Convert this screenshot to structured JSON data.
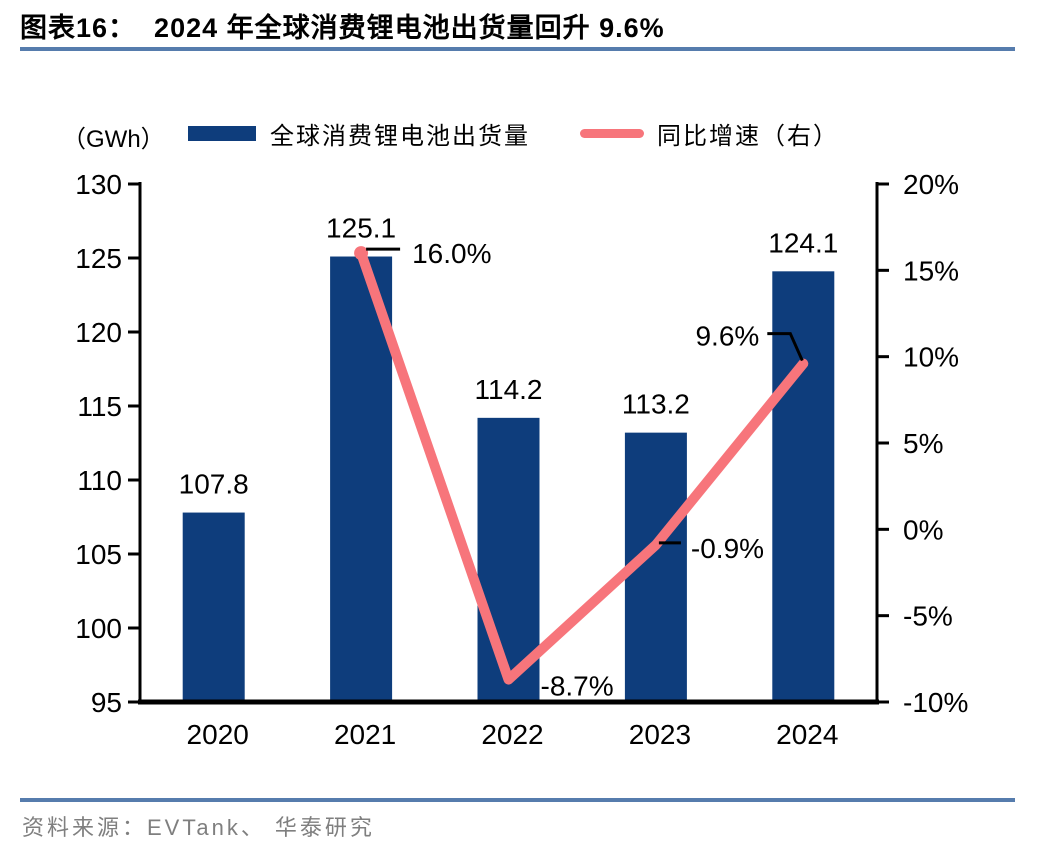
{
  "figure": {
    "label": "图表16：",
    "title": "2024 年全球消费锂电池出货量回升 9.6%",
    "unit_label": "（GWh）",
    "source": "资料来源：EVTank、 华泰研究"
  },
  "legend": {
    "bar_label": "全球消费锂电池出货量",
    "line_label": "同比增速（右）"
  },
  "colors": {
    "bar": "#0E3D7C",
    "line": "#F7757B",
    "axis": "#000000",
    "label_text": "#000000",
    "title_rule": "#567CAD",
    "source_rule": "#567CAD",
    "source_text": "#7F7F7F"
  },
  "chart_data": {
    "type": "bar",
    "subtype": "combo-bar-line-dual-axis",
    "title": "2024 年全球消费锂电池出货量回升 9.6%",
    "categories": [
      "2020",
      "2021",
      "2022",
      "2023",
      "2024"
    ],
    "series": [
      {
        "name": "全球消费锂电池出货量",
        "type": "bar",
        "axis": "left",
        "unit": "GWh",
        "color": "#0E3D7C",
        "values": [
          107.8,
          125.1,
          114.2,
          113.2,
          124.1
        ],
        "value_labels": [
          "107.8",
          "125.1",
          "114.2",
          "113.2",
          "124.1"
        ]
      },
      {
        "name": "同比增速（右）",
        "type": "line",
        "axis": "right",
        "unit": "%",
        "color": "#F7757B",
        "values": [
          null,
          16.0,
          -8.7,
          -0.9,
          9.6
        ],
        "value_labels": [
          null,
          "16.0%",
          "-8.7%",
          "-0.9%",
          "9.6%"
        ]
      }
    ],
    "left_axis": {
      "label": "（GWh）",
      "min": 95,
      "max": 130,
      "tick_values": [
        130,
        125,
        120,
        115,
        110,
        105,
        100,
        95
      ],
      "tick_labels": [
        "130",
        "125",
        "120",
        "115",
        "110",
        "105",
        "100",
        "95"
      ]
    },
    "right_axis": {
      "label": "同比增速",
      "min": -10,
      "max": 20,
      "tick_values": [
        20,
        15,
        10,
        5,
        0,
        -5,
        -10
      ],
      "tick_labels": [
        "20%",
        "15%",
        "10%",
        "5%",
        "0%",
        "-5%",
        "-10%"
      ]
    },
    "grid": false,
    "legend_position": "top"
  }
}
